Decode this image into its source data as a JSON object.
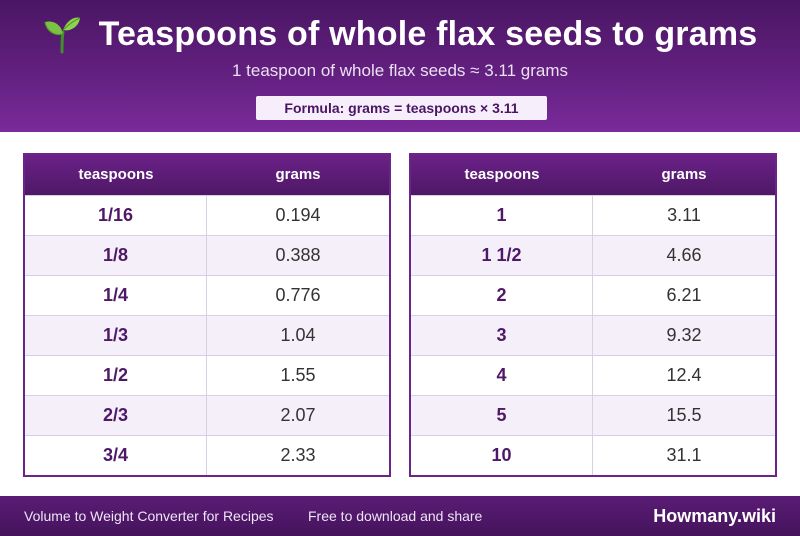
{
  "header": {
    "title": "Teaspoons of whole flax seeds to grams",
    "icon": "sprout-icon",
    "subtitle": "1 teaspoon of whole flax seeds ≈ 3.11 grams",
    "formula": "Formula: grams = teaspoons × 3.11"
  },
  "tables": [
    {
      "columns": [
        "teaspoons",
        "grams"
      ],
      "rows": [
        [
          "1/16",
          "0.194"
        ],
        [
          "1/8",
          "0.388"
        ],
        [
          "1/4",
          "0.776"
        ],
        [
          "1/3",
          "1.04"
        ],
        [
          "1/2",
          "1.55"
        ],
        [
          "2/3",
          "2.07"
        ],
        [
          "3/4",
          "2.33"
        ]
      ]
    },
    {
      "columns": [
        "teaspoons",
        "grams"
      ],
      "rows": [
        [
          "1",
          "3.11"
        ],
        [
          "1 1/2",
          "4.66"
        ],
        [
          "2",
          "6.21"
        ],
        [
          "3",
          "9.32"
        ],
        [
          "4",
          "12.4"
        ],
        [
          "5",
          "15.5"
        ],
        [
          "10",
          "31.1"
        ]
      ]
    }
  ],
  "footer": {
    "left": "Volume to Weight Converter for Recipes",
    "middle": "Free to download and share",
    "brand": "Howmany.wiki"
  },
  "colors": {
    "accent": "#62207f",
    "accent_dark": "#4a1663",
    "row_alt": "#f4eff9"
  }
}
